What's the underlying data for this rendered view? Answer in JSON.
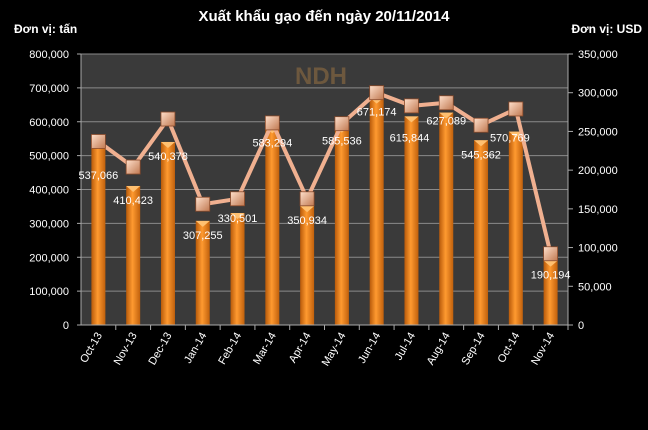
{
  "chart_data": {
    "type": "bar+line",
    "title": "Xuất khẩu gạo đến ngày 20/11/2014",
    "left_unit_label": "Đơn vị: tấn",
    "right_unit_label": "Đơn vị: USD",
    "watermark": "NDH",
    "categories": [
      "Oct-13",
      "Nov-13",
      "Dec-13",
      "Jan-14",
      "Feb-14",
      "Mar-14",
      "Apr-14",
      "May-14",
      "Jun-14",
      "Jul-14",
      "Aug-14",
      "Sep-14",
      "Oct-14",
      "Nov-14"
    ],
    "bar_series": {
      "axis": "left",
      "values": [
        537066,
        410423,
        540378,
        307255,
        330501,
        583294,
        350934,
        585536,
        671174,
        615844,
        627089,
        545362,
        570769,
        190194
      ],
      "labels": [
        "537,066",
        "410,423",
        "540,378",
        "307,255",
        "330,501",
        "583,294",
        "350,934",
        "585,536",
        "671,174",
        "615,844",
        "627,089",
        "545,362",
        "570,769",
        "190,194"
      ],
      "color": "#f08a24"
    },
    "line_series": {
      "axis": "right",
      "values": [
        237000,
        204000,
        266000,
        156000,
        163000,
        261000,
        163000,
        260000,
        300000,
        283000,
        287000,
        258000,
        279000,
        92000
      ],
      "color": "#f0b090"
    },
    "left_axis": {
      "ylim": [
        0,
        800000
      ],
      "ticks": [
        "0",
        "100,000",
        "200,000",
        "300,000",
        "400,000",
        "500,000",
        "600,000",
        "700,000",
        "800,000"
      ]
    },
    "right_axis": {
      "ylim": [
        0,
        350000
      ],
      "ticks": [
        "0",
        "50,000",
        "100,000",
        "150,000",
        "200,000",
        "250,000",
        "300,000",
        "350,000"
      ]
    },
    "grid": true,
    "colors": {
      "background": "#000000",
      "plot_area": "#3a3a3a",
      "grid": "#8a8a8a",
      "text": "#ffffff"
    }
  }
}
